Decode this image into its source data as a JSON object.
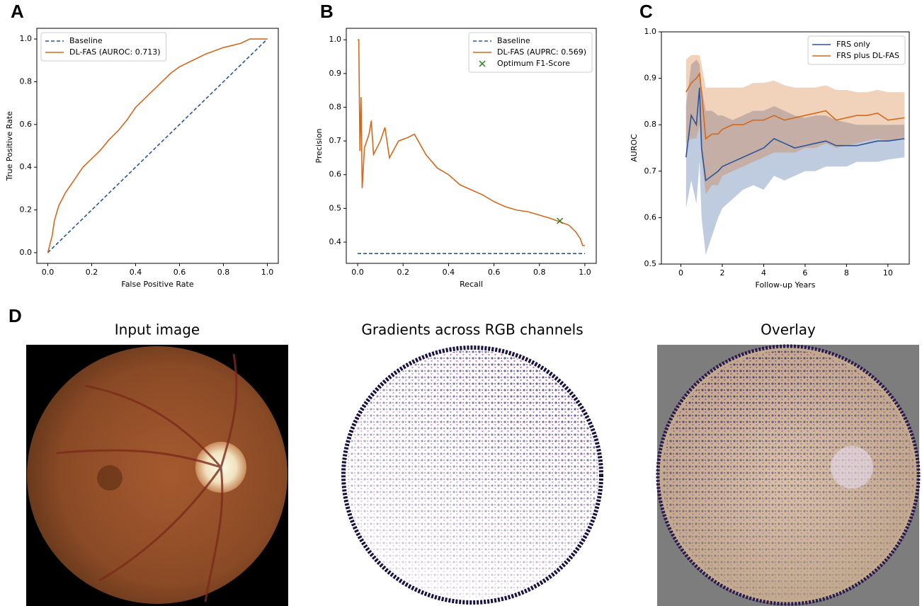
{
  "chart_data": [
    {
      "type": "line",
      "panel_label": "A",
      "x_label": "False Positive Rate",
      "y_label": "True Positive Rate",
      "xlim": [
        -0.05,
        1.05
      ],
      "ylim": [
        -0.05,
        1.05
      ],
      "xticks": [
        {
          "value": 0,
          "label": "0.0"
        },
        {
          "value": 0.2,
          "label": "0.2"
        },
        {
          "value": 0.4,
          "label": "0.4"
        },
        {
          "value": 0.6,
          "label": "0.6"
        },
        {
          "value": 0.8,
          "label": "0.8"
        },
        {
          "value": 1,
          "label": "1.0"
        }
      ],
      "yticks": [
        {
          "value": 0,
          "label": "0.0"
        },
        {
          "value": 0.2,
          "label": "0.2"
        },
        {
          "value": 0.4,
          "label": "0.4"
        },
        {
          "value": 0.6,
          "label": "0.6"
        },
        {
          "value": 0.8,
          "label": "0.8"
        },
        {
          "value": 1,
          "label": "1.0"
        }
      ],
      "legend": "upper left",
      "series": [
        {
          "name": "Baseline",
          "color": "#2a5599",
          "dashed": true,
          "x": [
            0,
            1
          ],
          "values": [
            0,
            1
          ]
        },
        {
          "name": "DL-FAS (AUROC: 0.713)",
          "color": "#d2691e",
          "x": [
            0,
            0.02,
            0.03,
            0.05,
            0.08,
            0.12,
            0.16,
            0.2,
            0.24,
            0.28,
            0.32,
            0.36,
            0.4,
            0.44,
            0.48,
            0.52,
            0.56,
            0.6,
            0.66,
            0.72,
            0.8,
            0.88,
            0.92,
            1
          ],
          "values": [
            0,
            0.08,
            0.15,
            0.22,
            0.28,
            0.34,
            0.4,
            0.44,
            0.48,
            0.53,
            0.57,
            0.62,
            0.68,
            0.72,
            0.76,
            0.8,
            0.84,
            0.87,
            0.9,
            0.93,
            0.96,
            0.98,
            1,
            1
          ]
        }
      ]
    },
    {
      "type": "line",
      "panel_label": "B",
      "x_label": "Recall",
      "y_label": "Precision",
      "xlim": [
        -0.05,
        1.05
      ],
      "ylim": [
        0.337,
        1.034
      ],
      "xticks": [
        {
          "value": 0,
          "label": "0.0"
        },
        {
          "value": 0.2,
          "label": "0.2"
        },
        {
          "value": 0.4,
          "label": "0.4"
        },
        {
          "value": 0.6,
          "label": "0.6"
        },
        {
          "value": 0.8,
          "label": "0.8"
        },
        {
          "value": 1,
          "label": "1.0"
        }
      ],
      "yticks": [
        0.4,
        0.5,
        0.6,
        0.7,
        0.8,
        0.9,
        {
          "value": 1,
          "label": "1.0"
        }
      ],
      "legend": "upper right",
      "series": [
        {
          "name": "Baseline",
          "color": "#2a5599",
          "dashed": true,
          "x": [
            0,
            1
          ],
          "values": [
            0.366,
            0.366
          ]
        },
        {
          "name": "DL-FAS (AUPRC: 0.569)",
          "color": "#d2691e",
          "x": [
            0,
            0.005,
            0.01,
            0.015,
            0.02,
            0.03,
            0.05,
            0.06,
            0.07,
            0.1,
            0.12,
            0.14,
            0.18,
            0.22,
            0.25,
            0.3,
            0.35,
            0.4,
            0.45,
            0.5,
            0.55,
            0.6,
            0.65,
            0.7,
            0.75,
            0.8,
            0.85,
            0.89,
            0.93,
            0.96,
            0.98,
            0.99,
            1
          ],
          "values": [
            1,
            1,
            0.67,
            0.83,
            0.56,
            0.68,
            0.72,
            0.76,
            0.66,
            0.7,
            0.74,
            0.65,
            0.7,
            0.71,
            0.72,
            0.66,
            0.62,
            0.6,
            0.57,
            0.555,
            0.54,
            0.52,
            0.505,
            0.495,
            0.49,
            0.48,
            0.47,
            0.46,
            0.45,
            0.43,
            0.41,
            0.39,
            0.39
          ]
        },
        {
          "name": "Optimum F1-Score",
          "color": "#2e7d1e",
          "marker": "x",
          "x": [
            0.89
          ],
          "values": [
            0.463
          ]
        }
      ]
    },
    {
      "type": "line",
      "panel_label": "C",
      "x_label": "Follow-up Years",
      "y_label": "AUROC",
      "xlim": [
        -0.94,
        11.03
      ],
      "ylim": [
        0.5,
        1.0
      ],
      "xticks": [
        0,
        2,
        4,
        6,
        8,
        10
      ],
      "yticks": [
        0.5,
        0.6,
        0.7,
        0.8,
        0.9,
        {
          "value": 1,
          "label": "1.0"
        }
      ],
      "legend": "upper right",
      "series": [
        {
          "name": "FRS only",
          "color": "#2a5599",
          "x": [
            0.25,
            0.5,
            0.75,
            0.9,
            1.0,
            1.2,
            1.5,
            1.8,
            2,
            2.5,
            3,
            3.5,
            4,
            4.5,
            5,
            5.5,
            6,
            6.5,
            7,
            7.5,
            8,
            8.5,
            9,
            9.5,
            10,
            10.8
          ],
          "values": [
            0.73,
            0.82,
            0.8,
            0.88,
            0.75,
            0.68,
            0.69,
            0.7,
            0.71,
            0.72,
            0.73,
            0.74,
            0.75,
            0.77,
            0.76,
            0.75,
            0.755,
            0.76,
            0.765,
            0.755,
            0.755,
            0.755,
            0.76,
            0.765,
            0.765,
            0.77
          ],
          "band_lower": [
            0.62,
            0.68,
            0.63,
            0.72,
            0.6,
            0.52,
            0.56,
            0.6,
            0.62,
            0.64,
            0.66,
            0.67,
            0.66,
            0.69,
            0.68,
            0.69,
            0.7,
            0.7,
            0.71,
            0.71,
            0.71,
            0.72,
            0.72,
            0.72,
            0.725,
            0.73
          ],
          "band_upper": [
            0.84,
            0.93,
            0.94,
            0.93,
            0.88,
            0.83,
            0.83,
            0.82,
            0.82,
            0.81,
            0.82,
            0.83,
            0.83,
            0.84,
            0.83,
            0.82,
            0.815,
            0.82,
            0.82,
            0.81,
            0.805,
            0.8,
            0.8,
            0.8,
            0.8,
            0.8
          ]
        },
        {
          "name": "FRS plus DL-FAS",
          "color": "#d2691e",
          "x": [
            0.25,
            0.5,
            0.75,
            0.9,
            1.0,
            1.2,
            1.5,
            1.8,
            2,
            2.5,
            3,
            3.5,
            4,
            4.5,
            5,
            5.5,
            6,
            6.5,
            7,
            7.5,
            8,
            8.5,
            9,
            9.5,
            10,
            10.8
          ],
          "values": [
            0.87,
            0.89,
            0.9,
            0.91,
            0.87,
            0.77,
            0.78,
            0.78,
            0.79,
            0.8,
            0.8,
            0.81,
            0.81,
            0.82,
            0.81,
            0.815,
            0.82,
            0.825,
            0.83,
            0.81,
            0.815,
            0.82,
            0.82,
            0.825,
            0.81,
            0.815
          ],
          "band_lower": [
            0.76,
            0.77,
            0.77,
            0.8,
            0.73,
            0.65,
            0.67,
            0.67,
            0.69,
            0.7,
            0.71,
            0.72,
            0.73,
            0.74,
            0.74,
            0.74,
            0.75,
            0.75,
            0.76,
            0.75,
            0.755,
            0.76,
            0.765,
            0.77,
            0.765,
            0.77
          ],
          "band_upper": [
            0.94,
            0.95,
            0.95,
            0.95,
            0.93,
            0.88,
            0.88,
            0.88,
            0.88,
            0.88,
            0.88,
            0.89,
            0.89,
            0.895,
            0.885,
            0.88,
            0.88,
            0.88,
            0.885,
            0.875,
            0.875,
            0.87,
            0.87,
            0.875,
            0.87,
            0.87
          ]
        }
      ]
    }
  ],
  "panel_d": {
    "label": "D",
    "titles": [
      "Input image",
      "Gradients across RGB channels",
      "Overlay"
    ]
  }
}
